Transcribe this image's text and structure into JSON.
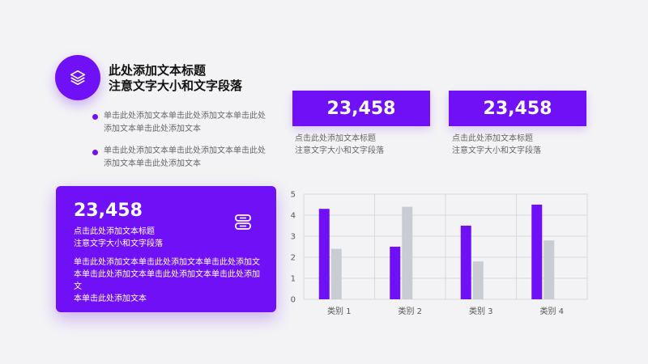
{
  "header": {
    "icon": "layers-icon",
    "title_line1": "此处添加文本标题",
    "title_line2": "注意文字大小和文字段落"
  },
  "bullets": [
    {
      "line1": "单击此处添加文本单击此处添加文本单击此处",
      "line2": "添加文本单击此处添加文本"
    },
    {
      "line1": "单击此处添加文本单击此处添加文本单击此处",
      "line2": "添加文本单击此处添加文本"
    }
  ],
  "stats": [
    {
      "value": "23,458",
      "caption1": "点击此处添加文本标题",
      "caption2": "注意文字大小和文字段落"
    },
    {
      "value": "23,458",
      "caption1": "点击此处添加文本标题",
      "caption2": "注意文字大小和文字段落"
    }
  ],
  "card": {
    "value": "23,458",
    "caption1": "点击此处添加文本标题",
    "caption2": "注意文字大小和文字段落",
    "body_line1": "单击此处添加文本单击此处添加文本单击此处添加文",
    "body_line2": "本单击此处添加文本单击此处添加文本单击此处添加文",
    "body_line3": "本单击此处添加文本",
    "icon": "stacked-cards-icon"
  },
  "colors": {
    "accent": "#7010f6",
    "secondary_bar": "#c9ccd3"
  },
  "chart_data": {
    "type": "bar",
    "categories": [
      "类别 1",
      "类别 2",
      "类别 3",
      "类别 4"
    ],
    "series": [
      {
        "values": [
          4.3,
          2.5,
          3.5,
          4.5
        ]
      },
      {
        "values": [
          2.4,
          4.4,
          1.8,
          2.8
        ]
      }
    ],
    "ylim": [
      0,
      5
    ],
    "yticks": [
      "0",
      "1",
      "2",
      "3",
      "4",
      "5"
    ],
    "grid": true,
    "title": "",
    "xlabel": "",
    "ylabel": ""
  }
}
